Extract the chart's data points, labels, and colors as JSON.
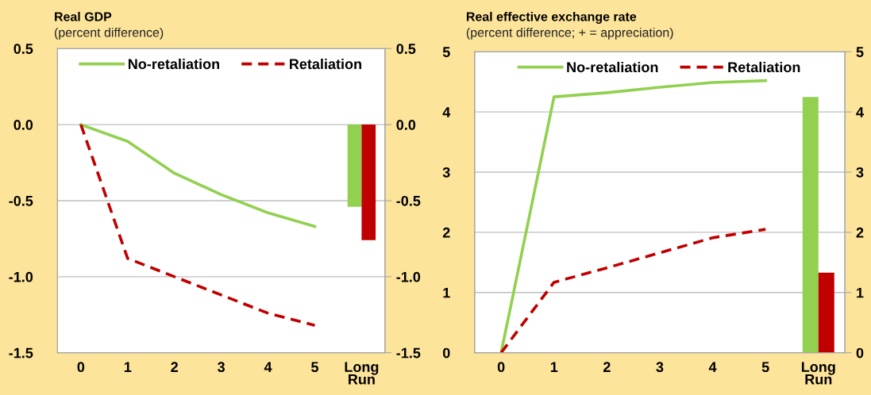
{
  "chart_data": [
    {
      "type": "line",
      "title": "Real GDP",
      "subtitle": "(percent difference)",
      "categories": [
        "0",
        "1",
        "2",
        "3",
        "4",
        "5",
        "Long\nRun"
      ],
      "series": [
        {
          "name": "No-retaliation",
          "color": "#92d050",
          "line_style": "solid",
          "values": [
            0,
            -0.11,
            -0.32,
            -0.46,
            -0.58,
            -0.67,
            null
          ]
        },
        {
          "name": "Retaliation",
          "color": "#c00000",
          "line_style": "dashed",
          "values": [
            0,
            -0.88,
            -1.0,
            -1.12,
            -1.24,
            -1.32,
            null
          ]
        },
        {
          "type": "bar",
          "color": "#92d050",
          "values": [
            null,
            null,
            null,
            null,
            null,
            null,
            -0.54
          ]
        },
        {
          "type": "bar",
          "color": "#c00000",
          "values": [
            null,
            null,
            null,
            null,
            null,
            null,
            -0.76
          ]
        }
      ],
      "ylim": [
        -1.5,
        0.5
      ],
      "yticks": [
        {
          "value": 0.5,
          "label": "0.5"
        },
        {
          "value": 0,
          "label": "0.0"
        },
        {
          "value": -0.5,
          "label": "-0.5"
        },
        {
          "value": -1.0,
          "label": "-1.0"
        },
        {
          "value": -1.5,
          "label": "-1.5"
        }
      ],
      "y2lim": [
        -1.5,
        0.5
      ],
      "y2ticks": [
        {
          "value": 0.5,
          "label": "0.5"
        },
        {
          "value": 0,
          "label": "0.0"
        },
        {
          "value": -0.5,
          "label": "-0.5"
        },
        {
          "value": -1.0,
          "label": "-1.0"
        },
        {
          "value": -1.5,
          "label": "-1.5"
        }
      ],
      "grid": "y",
      "legend": "top",
      "marker": "none"
    },
    {
      "type": "line",
      "title": "Real effective exchange rate",
      "subtitle": "(percent difference; + = appreciation)",
      "categories": [
        "0",
        "1",
        "2",
        "3",
        "4",
        "5",
        "Long\nRun"
      ],
      "series": [
        {
          "name": "No-retaliation",
          "color": "#92d050",
          "line_style": "solid",
          "values": [
            0,
            4.25,
            4.32,
            4.41,
            4.49,
            4.52,
            null
          ]
        },
        {
          "name": "Retaliation",
          "color": "#c00000",
          "line_style": "dashed",
          "values": [
            0,
            1.17,
            1.41,
            1.66,
            1.91,
            2.05,
            null
          ]
        },
        {
          "type": "bar",
          "color": "#92d050",
          "values": [
            null,
            null,
            null,
            null,
            null,
            null,
            4.25
          ]
        },
        {
          "type": "bar",
          "color": "#c00000",
          "values": [
            null,
            null,
            null,
            null,
            null,
            null,
            1.33
          ]
        }
      ],
      "ylim": [
        0,
        5
      ],
      "yticks": [
        0,
        1,
        2,
        3,
        4,
        5
      ],
      "y2lim": [
        0,
        5
      ],
      "y2ticks": [
        0,
        1,
        2,
        3,
        4,
        5
      ],
      "grid": "y",
      "legend": "top",
      "marker": "none"
    }
  ]
}
